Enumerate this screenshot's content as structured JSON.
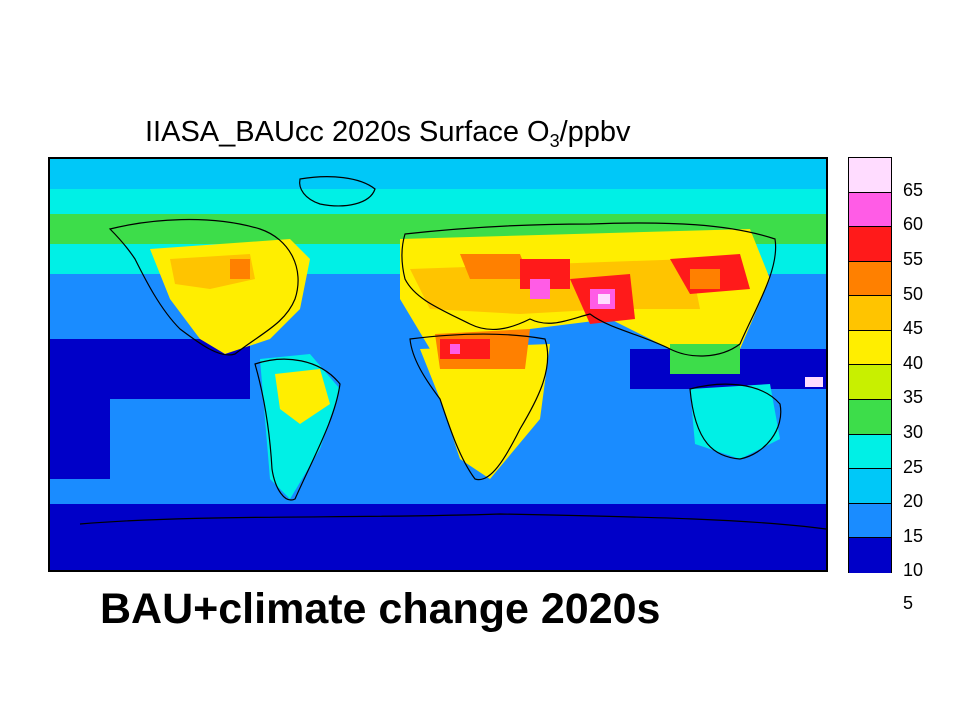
{
  "title": {
    "prefix": "IIASA_BAUcc 2020s Surface O",
    "subscript": "3",
    "suffix": "/ppbv"
  },
  "caption": "BAU+climate change 2020s",
  "colorbar": {
    "tick_labels": [
      "65",
      "60",
      "55",
      "50",
      "45",
      "40",
      "35",
      "30",
      "25",
      "20",
      "15",
      "10",
      "5"
    ],
    "bins_top_to_bottom": [
      {
        "range": "60-65+",
        "color": "#ffdcff"
      },
      {
        "range": "55-60",
        "color": "#ff5ce6"
      },
      {
        "range": "50-55",
        "color": "#ff1a1a"
      },
      {
        "range": "45-50",
        "color": "#ff8000"
      },
      {
        "range": "40-45",
        "color": "#ffc400"
      },
      {
        "range": "35-40",
        "color": "#ffee00"
      },
      {
        "range": "30-35",
        "color": "#c8f000"
      },
      {
        "range": "25-30",
        "color": "#3ddd4a"
      },
      {
        "range": "20-25",
        "color": "#00f0e6"
      },
      {
        "range": "15-20",
        "color": "#00c8f8"
      },
      {
        "range": "10-15",
        "color": "#1a8cff"
      },
      {
        "range": "5-10",
        "color": "#0000c8"
      }
    ]
  },
  "map": {
    "type": "global gridded field",
    "quantity": "Surface O3",
    "unit": "ppbv",
    "coastline_color": "#000000"
  }
}
